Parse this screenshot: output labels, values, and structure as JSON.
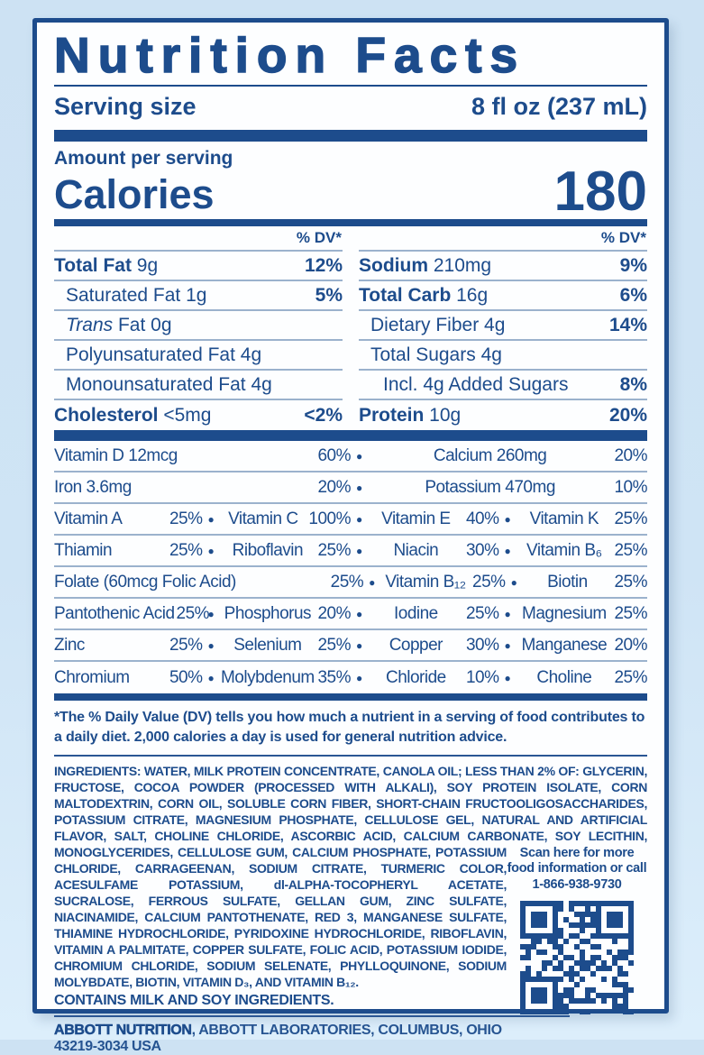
{
  "colors": {
    "navy": "#1d4c8c",
    "hairline": "#9bb2cd",
    "rule": "#2a5694",
    "bg_top": "#cde2f3",
    "bg_bottom": "#dceefb",
    "card": "#fdfeff"
  },
  "header": {
    "title": "Nutrition Facts",
    "serving_label": "Serving size",
    "serving_value": "8 fl oz (237 mL)"
  },
  "calories": {
    "amount_per_serving": "Amount per serving",
    "label": "Calories",
    "value": "180"
  },
  "macros": {
    "dv_header": "% DV*",
    "left_rows": [
      {
        "n": "Total Fat",
        "a": "9g",
        "v": "12%",
        "em": true,
        "ind": 0
      },
      {
        "n": "Saturated Fat",
        "a": "1g",
        "v": "5%",
        "em": false,
        "ind": 1
      },
      {
        "i": "Trans",
        "n": " Fat",
        "a": "0g",
        "v": "",
        "em": false,
        "ind": 1
      },
      {
        "n": "Polyunsaturated Fat",
        "a": "4g",
        "v": "",
        "em": false,
        "ind": 1
      },
      {
        "n": "Monounsaturated Fat",
        "a": "4g",
        "v": "",
        "em": false,
        "ind": 1
      },
      {
        "n": "Cholesterol",
        "a": "<5mg",
        "v": "<2%",
        "em": true,
        "ind": 0
      }
    ],
    "right_rows": [
      {
        "n": "Sodium",
        "a": "210mg",
        "v": "9%",
        "em": true,
        "ind": 0
      },
      {
        "n": "Total Carb",
        "a": "16g",
        "v": "6%",
        "em": true,
        "ind": 0
      },
      {
        "n": "Dietary Fiber",
        "a": "4g",
        "v": "14%",
        "em": false,
        "ind": 1
      },
      {
        "n": "Total Sugars",
        "a": "4g",
        "v": "",
        "em": false,
        "ind": 1
      },
      {
        "n": "Incl. 4g Added Sugars",
        "a": "",
        "v": "8%",
        "em": false,
        "ind": 2
      },
      {
        "n": "Protein",
        "a": "10g",
        "v": "20%",
        "em": true,
        "ind": 0
      }
    ]
  },
  "micros": {
    "rows": [
      {
        "type": "c2",
        "cells": [
          {
            "n": "Vitamin D 12mcg",
            "v": "60%"
          },
          {
            "n": "Calcium 260mg",
            "v": "20%"
          }
        ]
      },
      {
        "type": "c2",
        "cells": [
          {
            "n": "Iron 3.6mg",
            "v": "20%"
          },
          {
            "n": "Potassium 470mg",
            "v": "10%"
          }
        ]
      },
      {
        "type": "c4",
        "cells": [
          {
            "n": "Vitamin A",
            "v": "25%"
          },
          {
            "n": "Vitamin C",
            "v": "100%"
          },
          {
            "n": "Vitamin E",
            "v": "40%"
          },
          {
            "n": "Vitamin K",
            "v": "25%"
          }
        ]
      },
      {
        "type": "c4",
        "cells": [
          {
            "n": "Thiamin",
            "v": "25%"
          },
          {
            "n": "Riboflavin",
            "v": "25%"
          },
          {
            "n": "Niacin",
            "v": "30%"
          },
          {
            "n": "Vitamin B₆",
            "v": "25%"
          }
        ]
      },
      {
        "type": "cf",
        "cells": [
          {
            "n": "Folate (60mcg Folic Acid)",
            "v": "25%"
          },
          {
            "n": "Vitamin B₁₂",
            "v": "25%"
          },
          {
            "n": "Biotin",
            "v": "25%"
          }
        ]
      },
      {
        "type": "c4",
        "cells": [
          {
            "n": "Pantothenic Acid",
            "v": "25%"
          },
          {
            "n": "Phosphorus",
            "v": "20%"
          },
          {
            "n": "Iodine",
            "v": "25%"
          },
          {
            "n": "Magnesium",
            "v": "25%"
          }
        ]
      },
      {
        "type": "c4",
        "cells": [
          {
            "n": "Zinc",
            "v": "25%"
          },
          {
            "n": "Selenium",
            "v": "25%"
          },
          {
            "n": "Copper",
            "v": "30%"
          },
          {
            "n": "Manganese",
            "v": "20%"
          }
        ]
      },
      {
        "type": "c4",
        "cells": [
          {
            "n": "Chromium",
            "v": "50%"
          },
          {
            "n": "Molybdenum",
            "v": "35%"
          },
          {
            "n": "Chloride",
            "v": "10%"
          },
          {
            "n": "Choline",
            "v": "25%"
          }
        ]
      }
    ]
  },
  "footnote": "*The % Daily Value (DV) tells you how much a nutrient in a serving of food contributes to a daily diet. 2,000 calories a day is used for general nutrition advice.",
  "ingredients": {
    "label": "INGREDIENTS:",
    "part1": " WATER, MILK PROTEIN CONCENTRATE, CANOLA OIL; ",
    "less_than": "LESS THAN 2% OF:",
    "part2": " GLYCERIN, FRUCTOSE, COCOA POWDER (PROCESSED WITH ALKALI), SOY PROTEIN ISOLATE, CORN MALTODEXTRIN, CORN OIL, SOLUBLE CORN FIBER, SHORT-CHAIN FRUCTOOLIGOSACCHARIDES, POTASSIUM CITRATE, MAGNESIUM PHOSPHATE, CELLULOSE GEL, NATURAL AND ARTIFICIAL FLAVOR, SALT, CHOLINE CHLORIDE, ASCORBIC ACID, CALCIUM CARBONATE, SOY LECITHIN, MONOGLYCERIDES, CELLULOSE GUM, CALCIUM PHOSPHATE, POTASSIUM CHLORIDE, CARRAGEENAN, SODIUM CITRATE, TURMERIC COLOR, ACESULFAME POTASSIUM, dl-ALPHA-TOCOPHERYL ACETATE, SUCRALOSE, FERROUS SULFATE, GELLAN GUM, ZINC SULFATE, NIACINAMIDE, CALCIUM PANTOTHENATE, RED 3, MANGANESE SULFATE, THIAMINE HYDROCHLORIDE, PYRIDOXINE HYDROCHLORIDE, RIBOFLAVIN, VITAMIN A PALMITATE, COPPER SULFATE, FOLIC ACID, POTASSIUM IODIDE, CHROMIUM CHLORIDE, SODIUM SELENATE, PHYLLOQUINONE, SODIUM MOLYBDATE, BIOTIN, VITAMIN D₃, AND VITAMIN B₁₂.",
    "contains": "CONTAINS MILK AND SOY INGREDIENTS."
  },
  "scan": {
    "text": "Scan here for more food information or call",
    "phone": "1-866-938-9730",
    "qr_icon": "qr-code"
  },
  "footer": {
    "company": "ABBOTT NUTRITION",
    "rest": ", ABBOTT LABORATORIES, COLUMBUS, OHIO 43219-3034 USA"
  }
}
